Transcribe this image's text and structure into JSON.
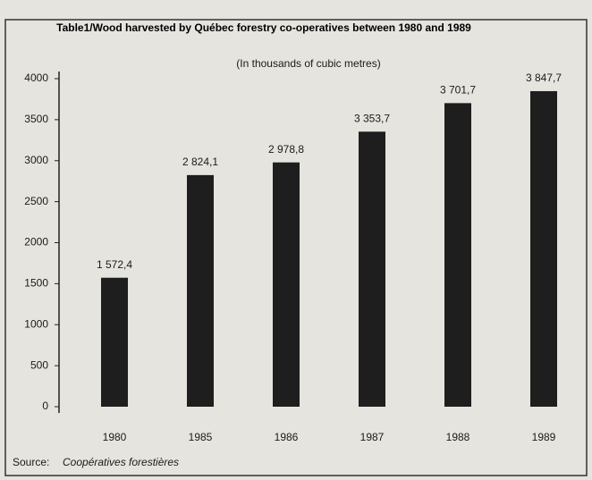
{
  "chart_data": {
    "type": "bar",
    "title": "Table1/Wood harvested by Québec forestry co-operatives between 1980 and 1989",
    "subtitle": "(In thousands of cubic metres)",
    "categories": [
      "1980",
      "1985",
      "1986",
      "1987",
      "1988",
      "1989"
    ],
    "values": [
      1572.4,
      2824.1,
      2978.8,
      3353.7,
      3701.7,
      3847.7
    ],
    "value_labels": [
      "1 572,4",
      "2 824,1",
      "2 978,8",
      "3 353,7",
      "3 701,7",
      "3 847,7"
    ],
    "color": "#1e1e1e",
    "ylim": [
      0,
      4000
    ],
    "yticks": [
      0,
      500,
      1000,
      1500,
      2000,
      2500,
      3000,
      3500,
      4000
    ],
    "grid": false,
    "source_label": "Source:",
    "source": "Coopératives forestières"
  }
}
